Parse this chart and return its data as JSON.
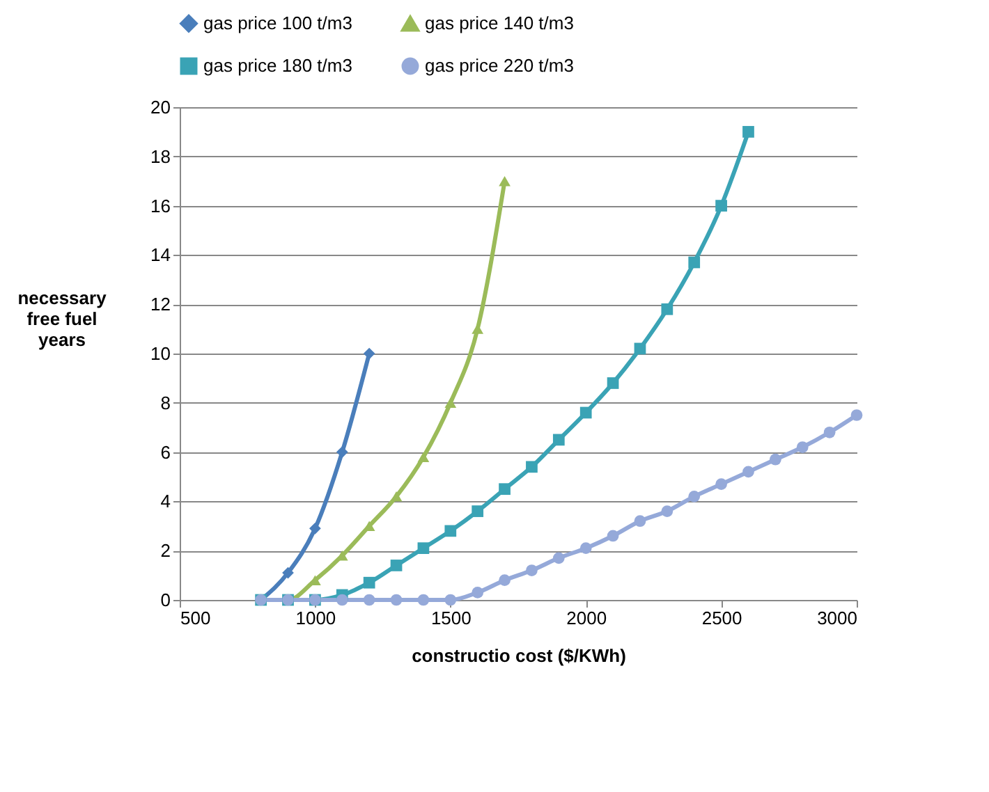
{
  "chart_data": {
    "type": "line",
    "xlabel": "constructio cost ($/KWh)",
    "ylabel": "necessary\nfree fuel\nyears",
    "xlim": [
      500,
      3000
    ],
    "xticks": [
      500,
      1000,
      1500,
      2000,
      2500,
      3000
    ],
    "ylim": [
      0,
      20
    ],
    "yticks": [
      0,
      2,
      4,
      6,
      8,
      10,
      12,
      14,
      16,
      18,
      20
    ],
    "grid": "y",
    "legend": "top",
    "series": [
      {
        "name": "gas price 100 t/m3",
        "color": "#4a7ebb",
        "marker": "diamond",
        "x": [
          800,
          900,
          1000,
          1100,
          1200
        ],
        "values": [
          0,
          1.1,
          2.9,
          6,
          10
        ]
      },
      {
        "name": "gas price 140 t/m3",
        "color": "#9bbb59",
        "marker": "triangle",
        "x": [
          800,
          900,
          1000,
          1100,
          1200,
          1300,
          1400,
          1500,
          1600,
          1700
        ],
        "values": [
          0,
          0,
          0.8,
          1.8,
          3,
          4.2,
          5.8,
          8,
          11,
          17
        ]
      },
      {
        "name": "gas price 180 t/m3",
        "color": "#3aa3b5",
        "marker": "square",
        "x": [
          800,
          900,
          1000,
          1100,
          1200,
          1300,
          1400,
          1500,
          1600,
          1700,
          1800,
          1900,
          2000,
          2100,
          2200,
          2300,
          2400,
          2500,
          2600
        ],
        "values": [
          0,
          0,
          0,
          0.2,
          0.7,
          1.4,
          2.1,
          2.8,
          3.6,
          4.5,
          5.4,
          6.5,
          7.6,
          8.8,
          10.2,
          11.8,
          13.7,
          16,
          19
        ]
      },
      {
        "name": "gas price 220 t/m3",
        "color": "#95a9d9",
        "marker": "circle",
        "x": [
          800,
          900,
          1000,
          1100,
          1200,
          1300,
          1400,
          1500,
          1600,
          1700,
          1800,
          1900,
          2000,
          2100,
          2200,
          2300,
          2400,
          2500,
          2600,
          2700,
          2800,
          2900,
          3000
        ],
        "values": [
          0,
          0,
          0,
          0,
          0,
          0,
          0,
          0,
          0.3,
          0.8,
          1.2,
          1.7,
          2.1,
          2.6,
          3.2,
          3.6,
          4.2,
          4.7,
          5.2,
          5.7,
          6.2,
          6.8,
          7.5
        ]
      }
    ]
  }
}
